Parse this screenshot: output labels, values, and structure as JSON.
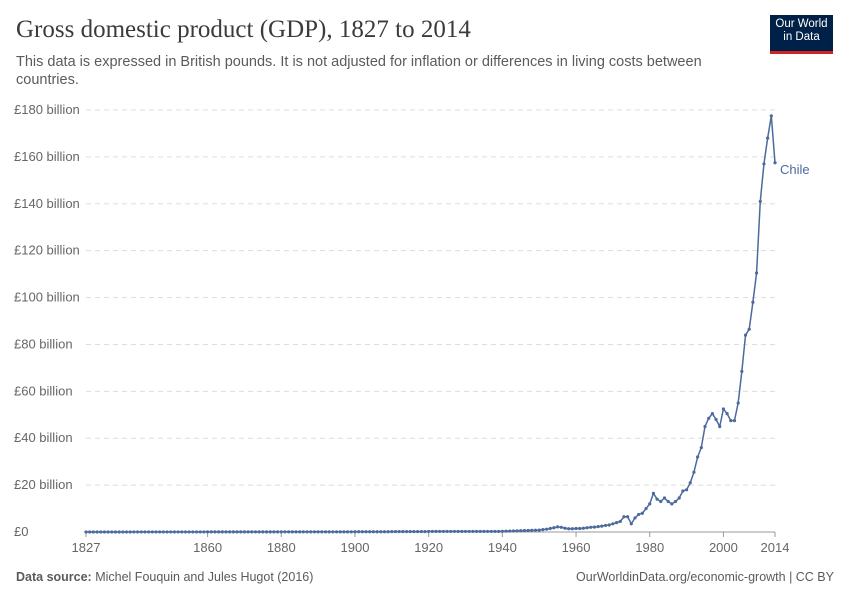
{
  "header": {
    "title": "Gross domestic product (GDP), 1827 to 2014",
    "subtitle": "This data is expressed in British pounds. It is not adjusted for inflation or differences in living costs between countries.",
    "logo_text": "Our World in Data"
  },
  "footer": {
    "source_label": "Data source:",
    "source": "Michel Fouquin and Jules Hugot (2016)",
    "right": "OurWorldinData.org/economic-growth | CC BY"
  },
  "chart_data": {
    "type": "line",
    "title": "Gross domestic product (GDP), 1827 to 2014",
    "xlim": [
      1827,
      2014
    ],
    "ylim": [
      0,
      180
    ],
    "grid": "horizontal dashed",
    "y_ticks": [
      0,
      20,
      40,
      60,
      80,
      100,
      120,
      140,
      160,
      180
    ],
    "y_tick_labels": [
      "£0",
      "£20 billion",
      "£40 billion",
      "£60 billion",
      "£80 billion",
      "£100 billion",
      "£120 billion",
      "£140 billion",
      "£160 billion",
      "£180 billion"
    ],
    "x_ticks": [
      1827,
      1860,
      1880,
      1900,
      1920,
      1940,
      1960,
      1980,
      2000,
      2014
    ],
    "x_tick_labels": [
      "1827",
      "1860",
      "1880",
      "1900",
      "1920",
      "1940",
      "1960",
      "1980",
      "2000",
      "2014"
    ],
    "series": [
      {
        "name": "Chile",
        "color": "#4c6a9c",
        "x": [
          1827,
          1828,
          1829,
          1830,
          1831,
          1832,
          1833,
          1834,
          1835,
          1836,
          1837,
          1838,
          1839,
          1840,
          1841,
          1842,
          1843,
          1844,
          1845,
          1846,
          1847,
          1848,
          1849,
          1850,
          1851,
          1852,
          1853,
          1854,
          1855,
          1856,
          1857,
          1858,
          1859,
          1860,
          1861,
          1862,
          1863,
          1864,
          1865,
          1866,
          1867,
          1868,
          1869,
          1870,
          1871,
          1872,
          1873,
          1874,
          1875,
          1876,
          1877,
          1878,
          1879,
          1880,
          1881,
          1882,
          1883,
          1884,
          1885,
          1886,
          1887,
          1888,
          1889,
          1890,
          1891,
          1892,
          1893,
          1894,
          1895,
          1896,
          1897,
          1898,
          1899,
          1900,
          1901,
          1902,
          1903,
          1904,
          1905,
          1906,
          1907,
          1908,
          1909,
          1910,
          1911,
          1912,
          1913,
          1914,
          1915,
          1916,
          1917,
          1918,
          1919,
          1920,
          1921,
          1922,
          1923,
          1924,
          1925,
          1926,
          1927,
          1928,
          1929,
          1930,
          1931,
          1932,
          1933,
          1934,
          1935,
          1936,
          1937,
          1938,
          1939,
          1940,
          1941,
          1942,
          1943,
          1944,
          1945,
          1946,
          1947,
          1948,
          1949,
          1950,
          1951,
          1952,
          1953,
          1954,
          1955,
          1956,
          1957,
          1958,
          1959,
          1960,
          1961,
          1962,
          1963,
          1964,
          1965,
          1966,
          1967,
          1968,
          1969,
          1970,
          1971,
          1972,
          1973,
          1974,
          1975,
          1976,
          1977,
          1978,
          1979,
          1980,
          1981,
          1982,
          1983,
          1984,
          1985,
          1986,
          1987,
          1988,
          1989,
          1990,
          1991,
          1992,
          1993,
          1994,
          1995,
          1996,
          1997,
          1998,
          1999,
          2000,
          2001,
          2002,
          2003,
          2004,
          2005,
          2006,
          2007,
          2008,
          2009,
          2010,
          2011,
          2012,
          2013,
          2014
        ],
        "values": [
          0.02,
          0.02,
          0.02,
          0.02,
          0.02,
          0.02,
          0.02,
          0.02,
          0.02,
          0.02,
          0.02,
          0.02,
          0.02,
          0.03,
          0.03,
          0.03,
          0.03,
          0.03,
          0.03,
          0.03,
          0.03,
          0.03,
          0.03,
          0.03,
          0.03,
          0.03,
          0.03,
          0.03,
          0.03,
          0.03,
          0.03,
          0.03,
          0.03,
          0.05,
          0.05,
          0.05,
          0.05,
          0.05,
          0.05,
          0.05,
          0.05,
          0.05,
          0.05,
          0.05,
          0.05,
          0.05,
          0.05,
          0.05,
          0.05,
          0.05,
          0.05,
          0.05,
          0.05,
          0.08,
          0.08,
          0.08,
          0.08,
          0.08,
          0.08,
          0.08,
          0.08,
          0.08,
          0.08,
          0.08,
          0.08,
          0.08,
          0.08,
          0.08,
          0.08,
          0.08,
          0.08,
          0.08,
          0.08,
          0.12,
          0.12,
          0.12,
          0.12,
          0.12,
          0.12,
          0.12,
          0.12,
          0.12,
          0.12,
          0.18,
          0.18,
          0.18,
          0.18,
          0.18,
          0.18,
          0.18,
          0.18,
          0.18,
          0.18,
          0.25,
          0.25,
          0.25,
          0.25,
          0.25,
          0.25,
          0.25,
          0.25,
          0.25,
          0.25,
          0.25,
          0.25,
          0.25,
          0.25,
          0.25,
          0.25,
          0.25,
          0.25,
          0.25,
          0.25,
          0.3,
          0.35,
          0.4,
          0.45,
          0.5,
          0.55,
          0.6,
          0.65,
          0.7,
          0.75,
          0.8,
          1.0,
          1.2,
          1.5,
          1.8,
          2.2,
          2.0,
          1.6,
          1.4,
          1.4,
          1.5,
          1.5,
          1.6,
          1.8,
          2.0,
          2.1,
          2.3,
          2.5,
          2.8,
          3.0,
          3.5,
          4.0,
          4.5,
          6.5,
          6.5,
          3.5,
          6.0,
          7.5,
          8.0,
          10.0,
          12.0,
          16.5,
          14.0,
          13.0,
          14.5,
          13.0,
          12.0,
          13.0,
          14.5,
          17.5,
          18.0,
          21.0,
          25.5,
          32.0,
          36.0,
          45.0,
          48.5,
          50.5,
          48.0,
          45.0,
          52.5,
          50.5,
          47.5,
          47.5,
          55.0,
          68.5,
          84.0,
          86.5,
          98.0,
          110.5,
          141.0,
          157.0,
          168.0,
          177.5,
          157.5
        ]
      }
    ]
  }
}
